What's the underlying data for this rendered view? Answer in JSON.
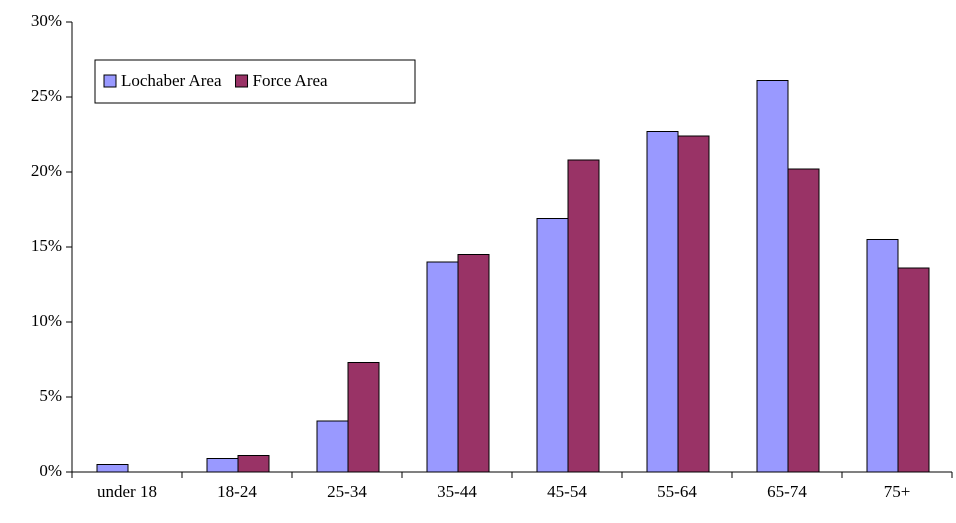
{
  "chart_data": {
    "type": "bar",
    "categories": [
      "under 18",
      "18-24",
      "25-34",
      "35-44",
      "45-54",
      "55-64",
      "65-74",
      "75+"
    ],
    "series": [
      {
        "name": "Lochaber Area",
        "color": "#9999ff",
        "values": [
          0.5,
          0.9,
          3.4,
          14.0,
          16.9,
          22.7,
          26.1,
          15.5
        ]
      },
      {
        "name": "Force Area",
        "color": "#993366",
        "values": [
          0,
          1.1,
          7.3,
          14.5,
          20.8,
          22.4,
          20.2,
          13.6
        ]
      }
    ],
    "ylim": [
      0,
      30
    ],
    "yticks": [
      {
        "value": 0,
        "label": "0%"
      },
      {
        "value": 5,
        "label": "5%"
      },
      {
        "value": 10,
        "label": "10%"
      },
      {
        "value": 15,
        "label": "15%"
      },
      {
        "value": 20,
        "label": "20%"
      },
      {
        "value": 25,
        "label": "25%"
      },
      {
        "value": 30,
        "label": "30%"
      }
    ],
    "grid": false,
    "legend": "upper left"
  }
}
